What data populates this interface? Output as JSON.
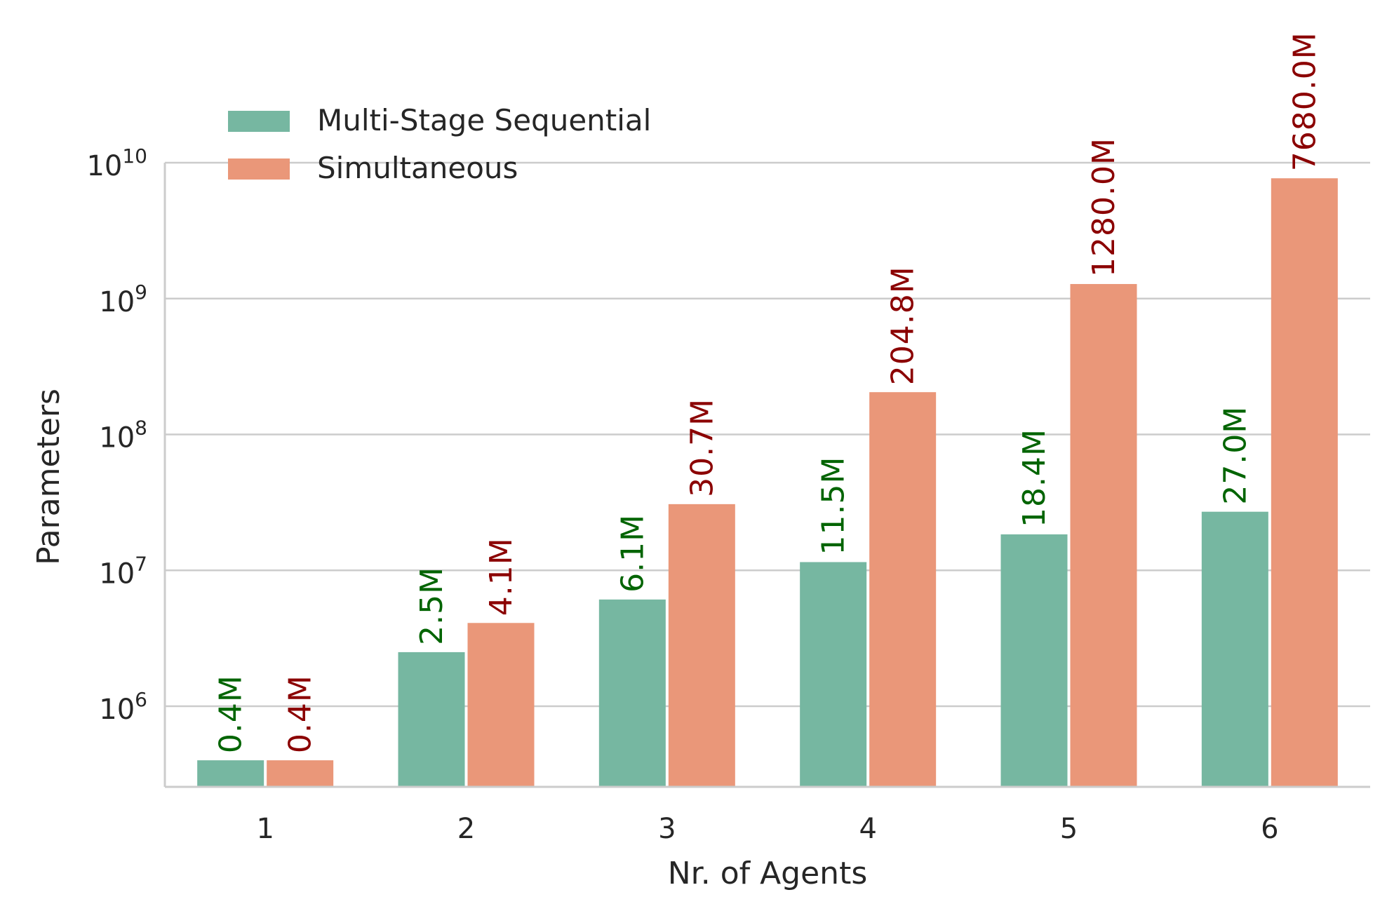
{
  "chart_data": {
    "type": "bar",
    "title": "",
    "xlabel": "Nr. of Agents",
    "ylabel": "Parameters",
    "yscale": "log",
    "ylim": [
      250000,
      10000000000
    ],
    "yticks": [
      1000000,
      10000000,
      100000000,
      1000000000,
      10000000000
    ],
    "ytick_labels": [
      {
        "base": "10",
        "exp": "6"
      },
      {
        "base": "10",
        "exp": "7"
      },
      {
        "base": "10",
        "exp": "8"
      },
      {
        "base": "10",
        "exp": "9"
      },
      {
        "base": "10",
        "exp": "10"
      }
    ],
    "grid": "horizontal",
    "legend_position": "top-left",
    "categories": [
      "1",
      "2",
      "3",
      "4",
      "5",
      "6"
    ],
    "series": [
      {
        "name": "Multi-Stage Sequential",
        "color": "#76b7a1",
        "label_color": "#006400",
        "values": [
          400000,
          2500000,
          6100000,
          11500000,
          18400000,
          27000000
        ],
        "labels": [
          "0.4M",
          "2.5M",
          "6.1M",
          "11.5M",
          "18.4M",
          "27.0M"
        ]
      },
      {
        "name": "Simultaneous",
        "color": "#ea9779",
        "label_color": "#8b0000",
        "values": [
          400000,
          4100000,
          30700000,
          204800000,
          1280000000,
          7680000000
        ],
        "labels": [
          "0.4M",
          "4.1M",
          "30.7M",
          "204.8M",
          "1280.0M",
          "7680.0M"
        ]
      }
    ]
  },
  "colors": {
    "grid": "#cccccc",
    "axis": "#cccccc",
    "text": "#262626"
  }
}
